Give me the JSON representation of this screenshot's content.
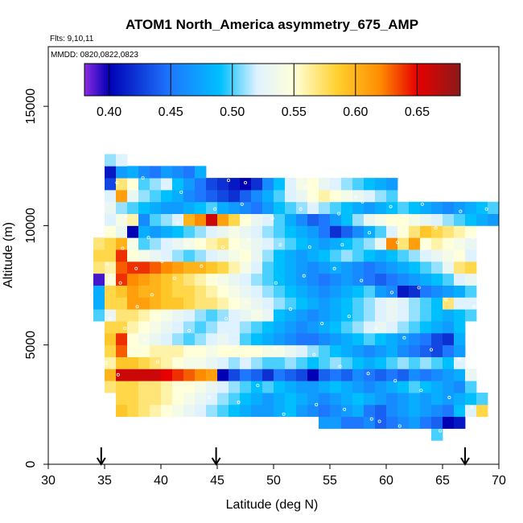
{
  "chart_data": {
    "type": "heatmap",
    "title": "ATOM1 North_America asymmetry_675_AMP",
    "flights_note": "Flts: 9,10,11",
    "dates_note": "MMDD: 0820,0822,0823",
    "xlabel": "Latitude (deg N)",
    "ylabel": "Altitude (m)",
    "xlim": [
      30,
      70
    ],
    "ylim": [
      0,
      17500
    ],
    "x_ticks": [
      "30",
      "35",
      "40",
      "45",
      "50",
      "55",
      "60",
      "65",
      "70"
    ],
    "y_ticks": [
      "0",
      "5000",
      "10000",
      "15000"
    ],
    "color_scale": {
      "range": [
        0.38,
        0.685
      ],
      "tick_labels": [
        "0.40",
        "0.45",
        "0.50",
        "0.55",
        "0.60",
        "0.65"
      ],
      "stops": [
        {
          "v": 0.38,
          "c": "#8b2be2"
        },
        {
          "v": 0.4,
          "c": "#0000b4"
        },
        {
          "v": 0.45,
          "c": "#1e78ff"
        },
        {
          "v": 0.49,
          "c": "#00bfff"
        },
        {
          "v": 0.52,
          "c": "#dff2ff"
        },
        {
          "v": 0.55,
          "c": "#ffffd9"
        },
        {
          "v": 0.585,
          "c": "#ffd030"
        },
        {
          "v": 0.62,
          "c": "#ff8c00"
        },
        {
          "v": 0.65,
          "c": "#e60000"
        },
        {
          "v": 0.685,
          "c": "#8b1a1a"
        }
      ]
    },
    "grid": {
      "lat_step": 1,
      "alt_step": 500
    },
    "arrows_at_latitude": [
      34.7,
      44.9,
      67.0
    ],
    "rows": [
      {
        "alt": 1250,
        "lat0": 64,
        "v": [
          0.5
        ]
      },
      {
        "alt": 1750,
        "lat0": 54,
        "v": [
          0.47,
          0.47,
          0.45,
          0.45,
          0.46,
          0.44,
          0.45,
          0.46,
          0.47,
          0.45,
          0.44,
          0.4,
          0.41
        ]
      },
      {
        "alt": 2250,
        "lat0": 36,
        "v": [
          0.59,
          0.58,
          0.57,
          0.56,
          0.55,
          0.54,
          0.53,
          0.52,
          0.51,
          0.5,
          0.49,
          0.48,
          0.47,
          0.47,
          0.48,
          0.49,
          0.47,
          0.46,
          0.45,
          0.46,
          0.47,
          0.48,
          0.45,
          0.44,
          0.46,
          0.47,
          0.48,
          0.47,
          0.46,
          0.45,
          0.49,
          0.52,
          0.58
        ]
      },
      {
        "alt": 2750,
        "lat0": 36,
        "v": [
          0.58,
          0.58,
          0.57,
          0.57,
          0.56,
          0.55,
          0.54,
          0.53,
          0.52,
          0.51,
          0.5,
          0.49,
          0.48,
          0.47,
          0.48,
          0.49,
          0.48,
          0.47,
          0.46,
          0.47,
          0.48,
          0.49,
          0.48,
          0.47,
          0.46,
          0.47,
          0.48,
          0.47,
          0.48,
          0.47,
          0.48,
          0.49,
          0.5
        ]
      },
      {
        "alt": 3250,
        "lat0": 35,
        "v": [
          0.57,
          0.58,
          0.58,
          0.57,
          0.57,
          0.56,
          0.55,
          0.55,
          0.54,
          0.53,
          0.52,
          0.51,
          0.5,
          0.49,
          0.5,
          0.49,
          0.48,
          0.47,
          0.47,
          0.48,
          0.49,
          0.48,
          0.47,
          0.46,
          0.47,
          0.48,
          0.49,
          0.5,
          0.49,
          0.48,
          0.47,
          0.46,
          0.5
        ]
      },
      {
        "alt": 3750,
        "lat0": 35,
        "v": [
          0.6,
          0.66,
          0.66,
          0.66,
          0.66,
          0.65,
          0.64,
          0.63,
          0.62,
          0.61,
          0.4,
          0.43,
          0.45,
          0.44,
          0.42,
          0.45,
          0.44,
          0.43,
          0.4,
          0.44,
          0.45,
          0.44,
          0.46,
          0.45,
          0.44,
          0.45,
          0.44,
          0.46,
          0.45,
          0.46,
          0.47,
          0.48,
          0.53
        ]
      },
      {
        "alt": 4250,
        "lat0": 35,
        "v": [
          0.56,
          0.59,
          0.59,
          0.58,
          0.57,
          0.56,
          0.55,
          0.54,
          0.54,
          0.53,
          0.52,
          0.51,
          0.52,
          0.51,
          0.5,
          0.5,
          0.51,
          0.5,
          0.49,
          0.5,
          0.51,
          0.5,
          0.49,
          0.48,
          0.49,
          0.5,
          0.51,
          0.5,
          0.51,
          0.5,
          0.49,
          0.52
        ]
      },
      {
        "alt": 4750,
        "lat0": 35,
        "v": [
          0.58,
          0.63,
          0.55,
          0.55,
          0.56,
          0.56,
          0.56,
          0.55,
          0.55,
          0.54,
          0.55,
          0.55,
          0.55,
          0.55,
          0.54,
          0.54,
          0.53,
          0.52,
          0.51,
          0.5,
          0.49,
          0.48,
          0.47,
          0.46,
          0.47,
          0.48,
          0.46,
          0.45,
          0.44,
          0.43,
          0.45,
          0.47
        ]
      },
      {
        "alt": 5250,
        "lat0": 35,
        "v": [
          0.59,
          0.64,
          0.55,
          0.54,
          0.53,
          0.52,
          0.51,
          0.5,
          0.51,
          0.52,
          0.53,
          0.52,
          0.5,
          0.49,
          0.48,
          0.47,
          0.46,
          0.45,
          0.45,
          0.46,
          0.47,
          0.48,
          0.49,
          0.5,
          0.49,
          0.48,
          0.47,
          0.46,
          0.45,
          0.43,
          0.42,
          0.48
        ]
      },
      {
        "alt": 5750,
        "lat0": 35,
        "v": [
          0.58,
          0.58,
          0.56,
          0.55,
          0.54,
          0.53,
          0.52,
          0.51,
          0.5,
          0.51,
          0.52,
          0.52,
          0.51,
          0.5,
          0.49,
          0.48,
          0.47,
          0.46,
          0.47,
          0.48,
          0.49,
          0.5,
          0.51,
          0.52,
          0.53,
          0.52,
          0.51,
          0.5,
          0.49,
          0.48,
          0.47,
          0.49
        ]
      },
      {
        "alt": 6250,
        "lat0": 34,
        "v": [
          0.5,
          0.53,
          0.57,
          0.57,
          0.56,
          0.55,
          0.54,
          0.53,
          0.52,
          0.51,
          0.5,
          0.51,
          0.52,
          0.53,
          0.54,
          0.53,
          0.49,
          0.48,
          0.47,
          0.46,
          0.47,
          0.48,
          0.49,
          0.5,
          0.51,
          0.52,
          0.53,
          0.52,
          0.51,
          0.5,
          0.49,
          0.48,
          0.49,
          0.5
        ]
      },
      {
        "alt": 6750,
        "lat0": 34,
        "v": [
          0.48,
          0.58,
          0.58,
          0.61,
          0.61,
          0.6,
          0.59,
          0.59,
          0.58,
          0.57,
          0.57,
          0.56,
          0.55,
          0.54,
          0.53,
          0.52,
          0.51,
          0.5,
          0.49,
          0.48,
          0.47,
          0.48,
          0.49,
          0.5,
          0.51,
          0.52,
          0.53,
          0.52,
          0.51,
          0.5,
          0.49,
          0.57,
          0.52,
          0.52
        ]
      },
      {
        "alt": 7250,
        "lat0": 34,
        "v": [
          0.48,
          0.58,
          0.59,
          0.61,
          0.6,
          0.6,
          0.59,
          0.58,
          0.58,
          0.57,
          0.56,
          0.55,
          0.54,
          0.53,
          0.52,
          0.51,
          0.5,
          0.49,
          0.48,
          0.47,
          0.46,
          0.47,
          0.48,
          0.49,
          0.5,
          0.47,
          0.46,
          0.41,
          0.42,
          0.45,
          0.46,
          0.47,
          0.48,
          0.5
        ]
      },
      {
        "alt": 7750,
        "lat0": 34,
        "v": [
          0.39,
          0.55,
          0.64,
          0.62,
          0.61,
          0.6,
          0.59,
          0.58,
          0.57,
          0.56,
          0.55,
          0.54,
          0.53,
          0.52,
          0.51,
          0.5,
          0.49,
          0.48,
          0.47,
          0.46,
          0.45,
          0.46,
          0.47,
          0.46,
          0.45,
          0.44,
          0.45,
          0.46,
          0.47,
          0.48,
          0.49,
          0.5,
          0.52,
          0.53
        ]
      },
      {
        "alt": 8250,
        "lat0": 34,
        "v": [
          0.57,
          0.56,
          0.63,
          0.64,
          0.64,
          0.63,
          0.62,
          0.61,
          0.6,
          0.6,
          0.59,
          0.58,
          0.56,
          0.54,
          0.52,
          0.5,
          0.49,
          0.48,
          0.47,
          0.46,
          0.47,
          0.48,
          0.47,
          0.46,
          0.45,
          0.46,
          0.47,
          0.48,
          0.49,
          0.5,
          0.51,
          0.53,
          0.57,
          0.58
        ]
      },
      {
        "alt": 8750,
        "lat0": 34,
        "v": [
          0.58,
          0.58,
          0.64,
          0.55,
          0.54,
          0.53,
          0.52,
          0.51,
          0.5,
          0.51,
          0.52,
          0.53,
          0.54,
          0.55,
          0.53,
          0.51,
          0.49,
          0.48,
          0.47,
          0.48,
          0.49,
          0.5,
          0.51,
          0.5,
          0.49,
          0.48,
          0.49,
          0.5,
          0.51,
          0.52,
          0.53,
          0.54,
          0.55,
          0.52
        ]
      },
      {
        "alt": 9250,
        "lat0": 34,
        "v": [
          0.57,
          0.58,
          0.6,
          0.54,
          0.5,
          0.51,
          0.52,
          0.53,
          0.54,
          0.55,
          0.56,
          0.57,
          0.55,
          0.54,
          0.53,
          0.52,
          0.51,
          0.5,
          0.49,
          0.48,
          0.47,
          0.48,
          0.49,
          0.5,
          0.51,
          0.53,
          0.62,
          0.57,
          0.61,
          0.55,
          0.56,
          0.55,
          0.54,
          0.53
        ]
      },
      {
        "alt": 9750,
        "lat0": 35,
        "v": [
          0.55,
          0.53,
          0.4,
          0.48,
          0.47,
          0.48,
          0.49,
          0.5,
          0.51,
          0.52,
          0.53,
          0.54,
          0.53,
          0.52,
          0.51,
          0.5,
          0.49,
          0.48,
          0.47,
          0.45,
          0.42,
          0.44,
          0.46,
          0.48,
          0.5,
          0.52,
          0.55,
          0.57,
          0.59,
          0.58,
          0.57,
          0.56,
          0.55
        ]
      },
      {
        "alt": 10250,
        "lat0": 35,
        "v": [
          0.52,
          0.54,
          0.56,
          0.46,
          0.5,
          0.51,
          0.52,
          0.6,
          0.62,
          0.66,
          0.61,
          0.58,
          0.55,
          0.53,
          0.52,
          0.5,
          0.48,
          0.46,
          0.44,
          0.45,
          0.47,
          0.49,
          0.51,
          0.53,
          0.54,
          0.55,
          0.55,
          0.54,
          0.53,
          0.52,
          0.51,
          0.5,
          0.49,
          0.48,
          0.47
        ]
      },
      {
        "alt": 10750,
        "lat0": 35,
        "v": [
          0.53,
          0.51,
          0.5,
          0.49,
          0.48,
          0.47,
          0.47,
          0.48,
          0.49,
          0.5,
          0.48,
          0.47,
          0.46,
          0.45,
          0.47,
          0.49,
          0.5,
          0.51,
          0.52,
          0.51,
          0.5,
          0.49,
          0.48,
          0.47,
          0.48,
          0.49,
          0.5,
          0.49,
          0.48,
          0.47,
          0.46,
          0.47,
          0.48,
          0.49,
          0.5
        ]
      },
      {
        "alt": 11250,
        "lat0": 35,
        "v": [
          0.52,
          0.61,
          0.53,
          0.51,
          0.5,
          0.49,
          0.48,
          0.46,
          0.45,
          0.44,
          0.43,
          0.42,
          0.44,
          0.46,
          0.48,
          0.5,
          0.52,
          0.53,
          0.55,
          0.56,
          0.55,
          0.54,
          0.53,
          0.52,
          0.51,
          0.5
        ]
      },
      {
        "alt": 11750,
        "lat0": 35,
        "v": [
          0.43,
          0.57,
          0.55,
          0.5,
          0.51,
          0.52,
          0.49,
          0.47,
          0.45,
          0.43,
          0.42,
          0.41,
          0.4,
          0.42,
          0.46,
          0.49,
          0.52,
          0.54,
          0.55,
          0.53,
          0.52,
          0.51,
          0.5,
          0.49,
          0.48,
          0.47
        ]
      },
      {
        "alt": 12250,
        "lat0": 35,
        "v": [
          0.41,
          0.47,
          0.48,
          0.46,
          0.45,
          0.47,
          0.46,
          0.45,
          0.48
        ]
      },
      {
        "alt": 12750,
        "lat0": 35,
        "v": [
          0.51,
          0.52
        ]
      }
    ],
    "sample_points": [
      [
        35.1,
        4250
      ],
      [
        36.2,
        3750
      ],
      [
        37.4,
        4700
      ],
      [
        38.6,
        5200
      ],
      [
        36.8,
        5700
      ],
      [
        35.5,
        6100
      ],
      [
        37.9,
        6600
      ],
      [
        39.2,
        7100
      ],
      [
        36.4,
        7600
      ],
      [
        41.2,
        7800
      ],
      [
        35.2,
        8400
      ],
      [
        37.8,
        8200
      ],
      [
        40.1,
        8500
      ],
      [
        43.6,
        8300
      ],
      [
        36.6,
        9050
      ],
      [
        38.9,
        9500
      ],
      [
        42.3,
        9200
      ],
      [
        45.5,
        9100
      ],
      [
        47.8,
        9400
      ],
      [
        50.6,
        9200
      ],
      [
        53.2,
        9100
      ],
      [
        56.1,
        9200
      ],
      [
        58.5,
        9700
      ],
      [
        61.0,
        9300
      ],
      [
        63.5,
        9100
      ],
      [
        66.2,
        8600
      ],
      [
        68.3,
        8300
      ],
      [
        36.9,
        10400
      ],
      [
        41.5,
        10100
      ],
      [
        44.8,
        10700
      ],
      [
        47.2,
        10900
      ],
      [
        49.9,
        10300
      ],
      [
        52.4,
        10700
      ],
      [
        55.8,
        10500
      ],
      [
        57.9,
        11000
      ],
      [
        60.4,
        10800
      ],
      [
        63.2,
        10900
      ],
      [
        66.6,
        10600
      ],
      [
        68.9,
        10700
      ],
      [
        69.7,
        11100
      ],
      [
        36.1,
        11800
      ],
      [
        41.8,
        11400
      ],
      [
        46.0,
        11900
      ],
      [
        47.5,
        11800
      ],
      [
        38.4,
        12000
      ],
      [
        52.9,
        11600
      ],
      [
        57.3,
        11200
      ],
      [
        61.7,
        10400
      ],
      [
        64.4,
        9900
      ],
      [
        67.7,
        9500
      ],
      [
        50.2,
        7600
      ],
      [
        52.7,
        7900
      ],
      [
        55.4,
        8200
      ],
      [
        57.8,
        7700
      ],
      [
        60.5,
        7200
      ],
      [
        62.9,
        7400
      ],
      [
        65.3,
        6900
      ],
      [
        67.8,
        6600
      ],
      [
        69.1,
        6300
      ],
      [
        51.5,
        6500
      ],
      [
        54.3,
        5900
      ],
      [
        56.7,
        6200
      ],
      [
        59.1,
        5700
      ],
      [
        61.6,
        5300
      ],
      [
        64.0,
        4800
      ],
      [
        66.5,
        4400
      ],
      [
        68.5,
        5100
      ],
      [
        50.1,
        4900
      ],
      [
        53.6,
        4600
      ],
      [
        55.9,
        4100
      ],
      [
        58.4,
        3800
      ],
      [
        60.8,
        3500
      ],
      [
        63.1,
        3100
      ],
      [
        65.6,
        2800
      ],
      [
        67.6,
        2400
      ],
      [
        50.9,
        2100
      ],
      [
        53.8,
        2500
      ],
      [
        56.3,
        2300
      ],
      [
        58.7,
        1900
      ],
      [
        59.4,
        1800
      ],
      [
        61.2,
        1600
      ],
      [
        64.8,
        1400
      ],
      [
        41.7,
        3200
      ],
      [
        44.3,
        2800
      ],
      [
        46.9,
        2600
      ],
      [
        48.6,
        3300
      ],
      [
        42.5,
        5600
      ],
      [
        45.8,
        6100
      ],
      [
        47.6,
        6800
      ],
      [
        39.7,
        4300
      ]
    ]
  }
}
